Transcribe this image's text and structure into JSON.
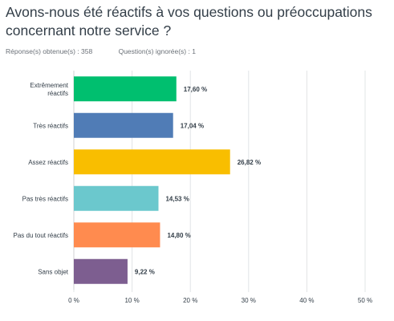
{
  "question": {
    "title": "Avons-nous été réactifs à vos questions ou préoccupations concernant notre service ?",
    "answered": "Réponse(s) obtenue(s) : 358",
    "skipped": "Question(s) ignorée(s) : 1"
  },
  "chart_data": {
    "type": "bar",
    "orientation": "horizontal",
    "categories": [
      [
        "Extrêmement",
        "réactifs"
      ],
      [
        "Très réactifs"
      ],
      [
        "Assez réactifs"
      ],
      [
        "Pas très réactifs"
      ],
      [
        "Pas du tout réactifs"
      ],
      [
        "Sans objet"
      ]
    ],
    "values": [
      17.6,
      17.04,
      26.82,
      14.53,
      14.8,
      9.22
    ],
    "value_labels": [
      "17,60 %",
      "17,04 %",
      "26,82 %",
      "14,53 %",
      "14,80 %",
      "9,22 %"
    ],
    "colors": [
      "#00bf6f",
      "#507cb6",
      "#f9be00",
      "#6bc8cd",
      "#ff8b4f",
      "#7d5e90"
    ],
    "x_ticks": [
      "0 %",
      "10 %",
      "20 %",
      "30 %",
      "40 %",
      "50 %"
    ],
    "xlim": [
      0,
      50
    ],
    "grid": true
  }
}
